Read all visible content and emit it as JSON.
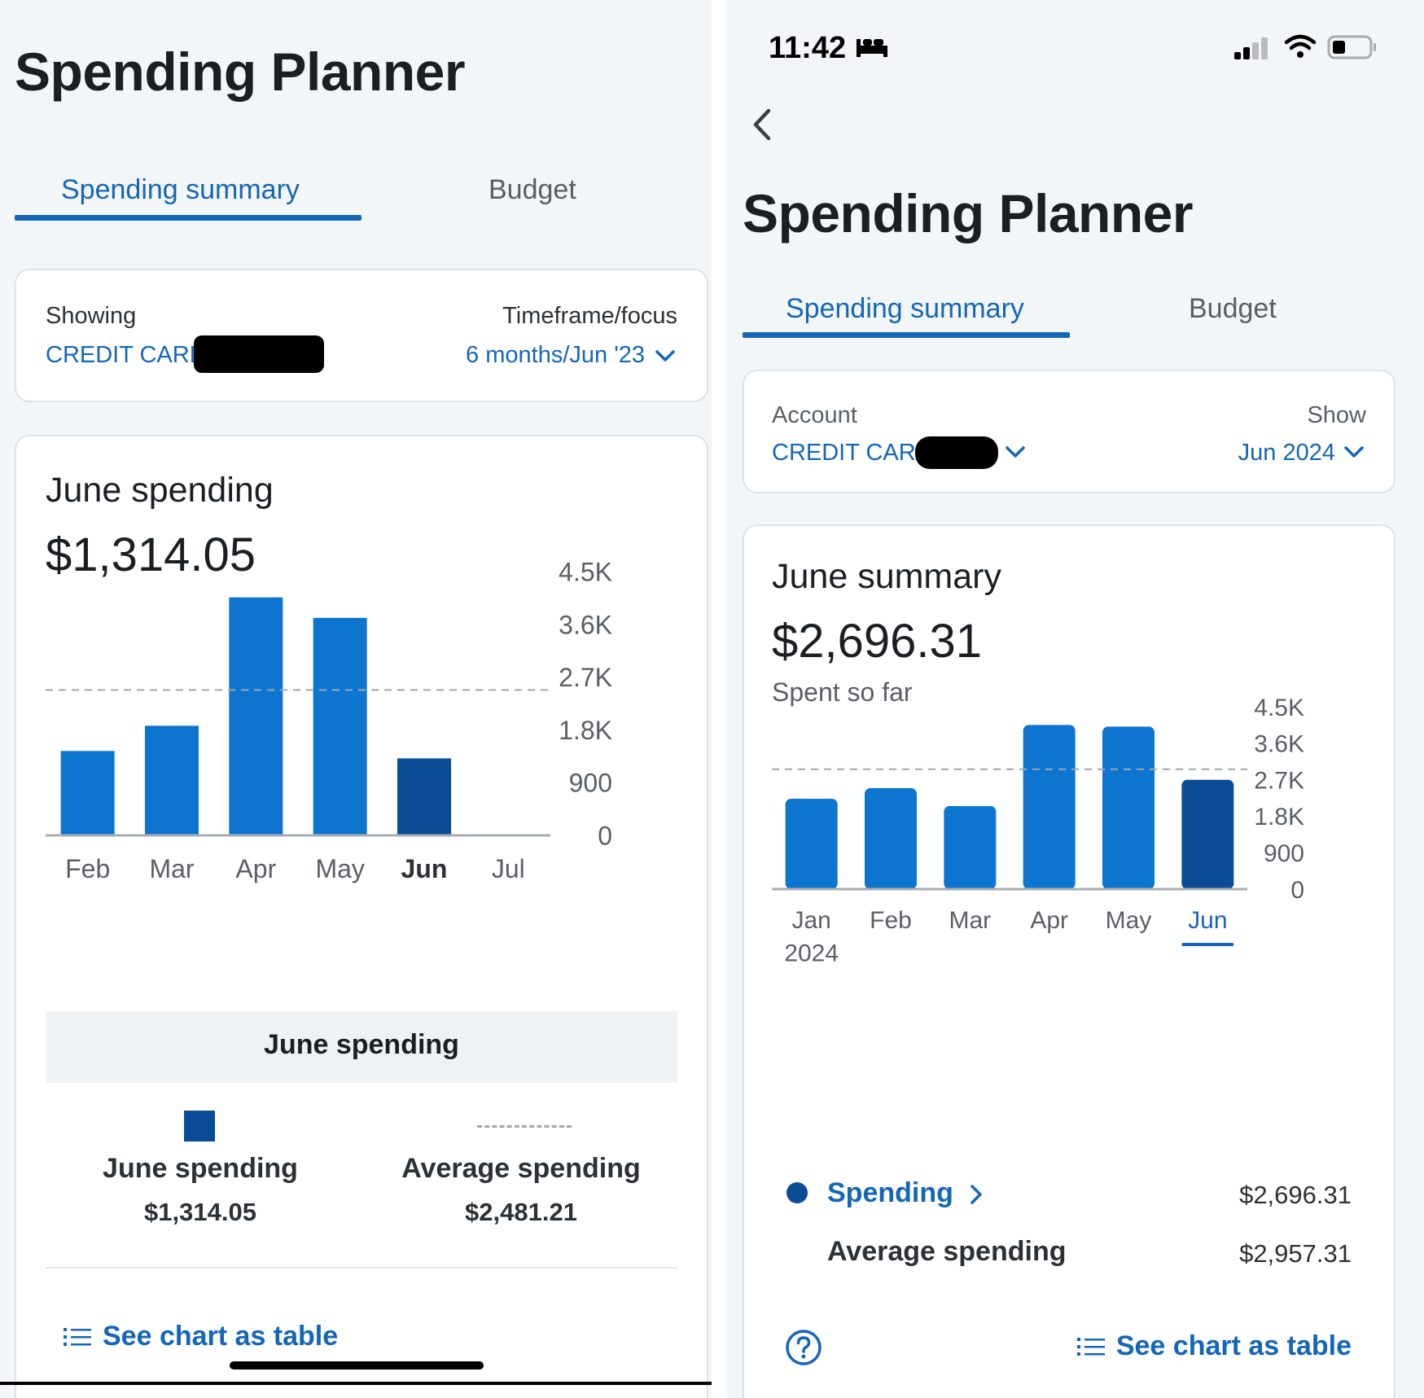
{
  "left": {
    "title": "Spending Planner",
    "tabs": [
      {
        "label": "Spending summary",
        "active": true
      },
      {
        "label": "Budget",
        "active": false
      }
    ],
    "filter": {
      "showing_label": "Showing",
      "account": "CREDIT CARD",
      "timeframe_label": "Timeframe/focus",
      "timeframe_value": "6 months/Jun '23"
    },
    "summary": {
      "heading": "June spending",
      "amount": "$1,314.05"
    },
    "legend": {
      "title": "June spending",
      "items": [
        {
          "name": "June spending",
          "value": "$1,314.05"
        },
        {
          "name": "Average spending",
          "value": "$2,481.21"
        }
      ]
    },
    "see_table": "See chart as table"
  },
  "right": {
    "status_time": "11:42",
    "title": "Spending Planner",
    "tabs": [
      {
        "label": "Spending summary",
        "active": true
      },
      {
        "label": "Budget",
        "active": false
      }
    ],
    "filter": {
      "account_label": "Account",
      "account": "CREDIT CARD",
      "show_label": "Show",
      "show_value": "Jun 2024"
    },
    "summary": {
      "heading": "June summary",
      "amount": "$2,696.31",
      "subtext": "Spent so far"
    },
    "rows": [
      {
        "label": "Spending",
        "value": "$2,696.31"
      },
      {
        "label": "Average spending",
        "value": "$2,957.31"
      }
    ],
    "see_table": "See chart as table"
  },
  "colors": {
    "accent": "#1466b8",
    "bar": "#0d75d0",
    "bar_selected": "#0a4c96",
    "average_line": "#a0a6ad",
    "background": "#f3f6f8"
  },
  "chart_data": [
    {
      "type": "bar",
      "categories": [
        "Feb",
        "Mar",
        "Apr",
        "May",
        "Jun",
        "Jul"
      ],
      "series": [
        {
          "values": [
            1440,
            1870,
            4060,
            3710,
            1314.05,
            null
          ]
        }
      ],
      "average": 2481.21,
      "selected": "Jun",
      "yticks": [
        "0",
        "900",
        "1.8K",
        "2.7K",
        "3.6K",
        "4.5K"
      ],
      "ylim": [
        0,
        4500
      ],
      "xlabel": "",
      "ylabel": ""
    },
    {
      "type": "bar",
      "categories": [
        "Jan\n2024",
        "Feb",
        "Mar",
        "Apr",
        "May",
        "Jun"
      ],
      "series": [
        {
          "values": [
            2230,
            2490,
            2050,
            4050,
            4010,
            2696.31
          ]
        }
      ],
      "average": 2957.31,
      "selected": "Jun",
      "yticks": [
        "0",
        "900",
        "1.8K",
        "2.7K",
        "3.6K",
        "4.5K"
      ],
      "ylim": [
        0,
        4500
      ],
      "xlabel": "",
      "ylabel": ""
    }
  ]
}
